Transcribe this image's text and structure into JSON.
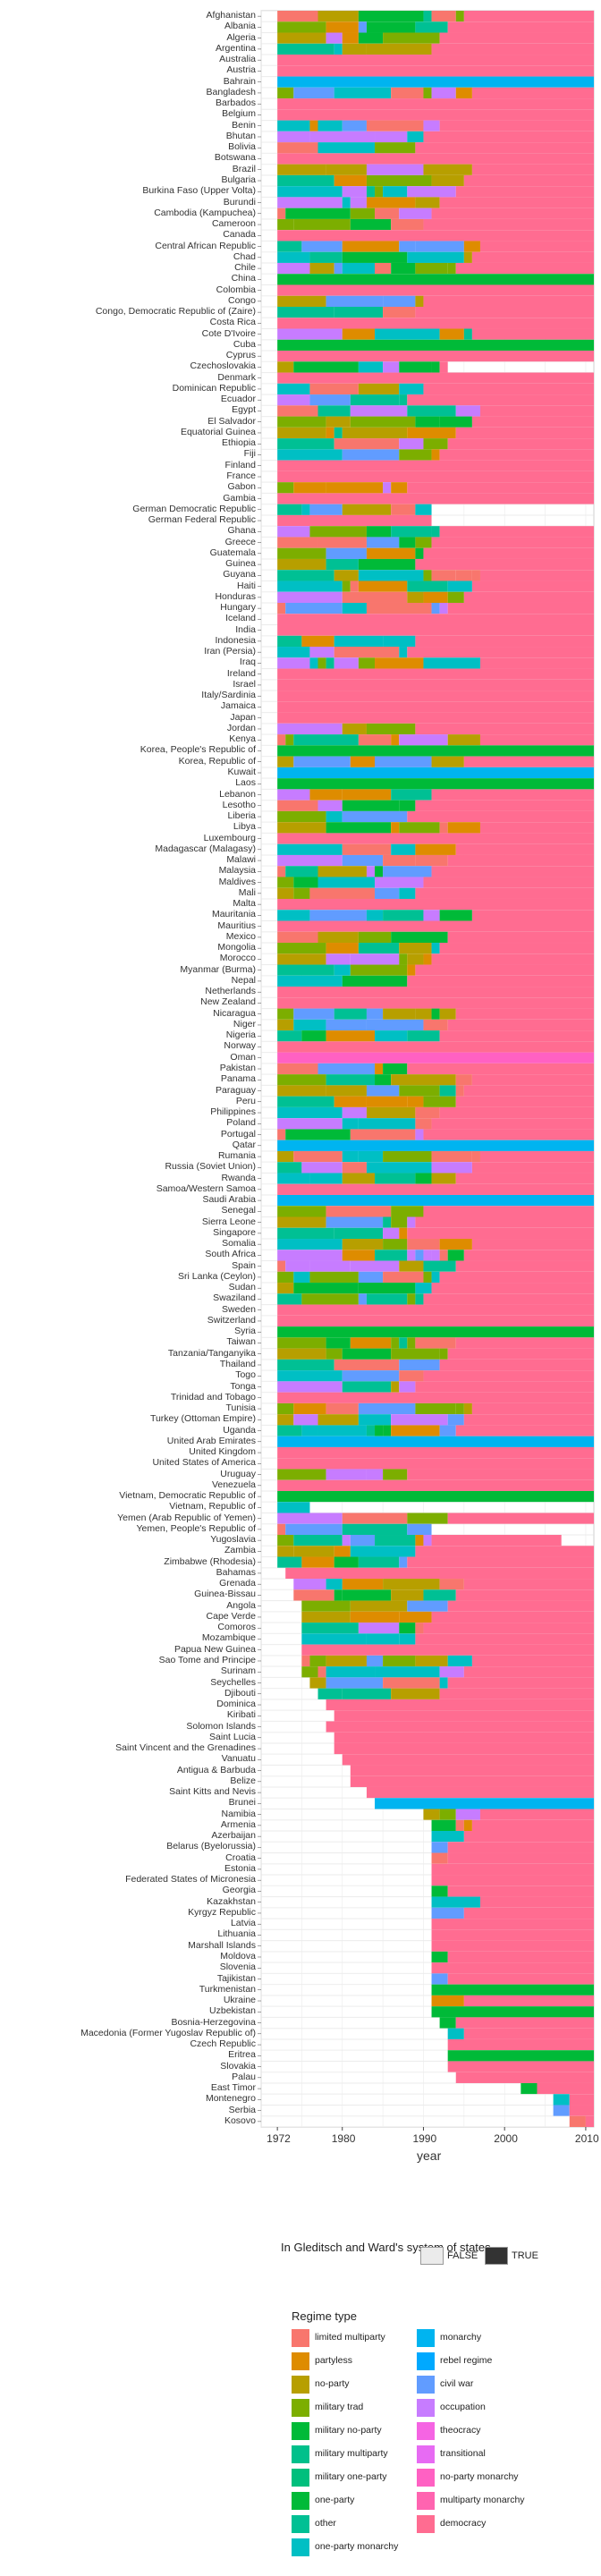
{
  "chart_data": {
    "type": "heatmap",
    "xlabel": "year",
    "x_ticks": [
      1972,
      1980,
      1990,
      2000,
      2010
    ],
    "xlim": [
      1970,
      2011
    ],
    "rows": [
      "Afghanistan",
      "Albania",
      "Algeria",
      "Argentina",
      "Australia",
      "Austria",
      "Bahrain",
      "Bangladesh",
      "Barbados",
      "Belgium",
      "Benin",
      "Bhutan",
      "Bolivia",
      "Botswana",
      "Brazil",
      "Bulgaria",
      "Burkina Faso (Upper Volta)",
      "Burundi",
      "Cambodia (Kampuchea)",
      "Cameroon",
      "Canada",
      "Central African Republic",
      "Chad",
      "Chile",
      "China",
      "Colombia",
      "Congo",
      "Congo, Democratic Republic of (Zaire)",
      "Costa Rica",
      "Cote D'Ivoire",
      "Cuba",
      "Cyprus",
      "Czechoslovakia",
      "Denmark",
      "Dominican Republic",
      "Ecuador",
      "Egypt",
      "El Salvador",
      "Equatorial Guinea",
      "Ethiopia",
      "Fiji",
      "Finland",
      "France",
      "Gabon",
      "Gambia",
      "German Democratic Republic",
      "German Federal Republic",
      "Ghana",
      "Greece",
      "Guatemala",
      "Guinea",
      "Guyana",
      "Haiti",
      "Honduras",
      "Hungary",
      "Iceland",
      "India",
      "Indonesia",
      "Iran (Persia)",
      "Iraq",
      "Ireland",
      "Israel",
      "Italy/Sardinia",
      "Jamaica",
      "Japan",
      "Jordan",
      "Kenya",
      "Korea, People's Republic of",
      "Korea, Republic of",
      "Kuwait",
      "Laos",
      "Lebanon",
      "Lesotho",
      "Liberia",
      "Libya",
      "Luxembourg",
      "Madagascar (Malagasy)",
      "Malawi",
      "Malaysia",
      "Maldives",
      "Mali",
      "Malta",
      "Mauritania",
      "Mauritius",
      "Mexico",
      "Mongolia",
      "Morocco",
      "Myanmar (Burma)",
      "Nepal",
      "Netherlands",
      "New Zealand",
      "Nicaragua",
      "Niger",
      "Nigeria",
      "Norway",
      "Oman",
      "Pakistan",
      "Panama",
      "Paraguay",
      "Peru",
      "Philippines",
      "Poland",
      "Portugal",
      "Qatar",
      "Rumania",
      "Russia (Soviet Union)",
      "Rwanda",
      "Samoa/Western Samoa",
      "Saudi Arabia",
      "Senegal",
      "Sierra Leone",
      "Singapore",
      "Somalia",
      "South Africa",
      "Spain",
      "Sri Lanka (Ceylon)",
      "Sudan",
      "Swaziland",
      "Sweden",
      "Switzerland",
      "Syria",
      "Taiwan",
      "Tanzania/Tanganyika",
      "Thailand",
      "Togo",
      "Tonga",
      "Trinidad and Tobago",
      "Tunisia",
      "Turkey (Ottoman Empire)",
      "Uganda",
      "United Arab Emirates",
      "United Kingdom",
      "United States of America",
      "Uruguay",
      "Venezuela",
      "Vietnam, Democratic Republic of",
      "Vietnam, Republic of",
      "Yemen (Arab Republic of Yemen)",
      "Yemen, People's Republic of",
      "Yugoslavia",
      "Zambia",
      "Zimbabwe (Rhodesia)",
      "Bahamas",
      "Grenada",
      "Guinea-Bissau",
      "Angola",
      "Cape Verde",
      "Comoros",
      "Mozambique",
      "Papua New Guinea",
      "Sao Tome and Principe",
      "Surinam",
      "Seychelles",
      "Djibouti",
      "Dominica",
      "Kiribati",
      "Solomon Islands",
      "Saint Lucia",
      "Saint Vincent and the Grenadines",
      "Vanuatu",
      "Antigua & Barbuda",
      "Belize",
      "Saint Kitts and Nevis",
      "Brunei",
      "Namibia",
      "Armenia",
      "Azerbaijan",
      "Belarus (Byelorussia)",
      "Croatia",
      "Estonia",
      "Federated States of Micronesia",
      "Georgia",
      "Kazakhstan",
      "Kyrgyz Republic",
      "Latvia",
      "Lithuania",
      "Marshall Islands",
      "Moldova",
      "Slovenia",
      "Tajikistan",
      "Turkmenistan",
      "Ukraine",
      "Uzbekistan",
      "Bosnia-Herzegovina",
      "Macedonia (Former Yugoslav Republic of)",
      "Czech Republic",
      "Eritrea",
      "Slovakia",
      "Palau",
      "East Timor",
      "Montenegro",
      "Serbia",
      "Kosovo"
    ],
    "legend_fill": {
      "title": "In Gleditsch and Ward's system of states",
      "entries": [
        {
          "label": "FALSE",
          "color": "#ebebeb"
        },
        {
          "label": "TRUE",
          "color": "#333333"
        }
      ]
    },
    "legend_regime": {
      "title": "Regime type",
      "entries": [
        {
          "label": "limited multiparty",
          "color": "#F8766D"
        },
        {
          "label": "partyless",
          "color": "#DE8C00"
        },
        {
          "label": "no-party",
          "color": "#B79F00"
        },
        {
          "label": "military trad",
          "color": "#7CAE00"
        },
        {
          "label": "military no-party",
          "color": "#00BA38"
        },
        {
          "label": "military multiparty",
          "color": "#00C08B"
        },
        {
          "label": "military one-party",
          "color": "#00BF7D"
        },
        {
          "label": "one-party",
          "color": "#00BA38"
        },
        {
          "label": "other",
          "color": "#00C094"
        },
        {
          "label": "one-party monarchy",
          "color": "#00BFC4"
        },
        {
          "label": "monarchy",
          "color": "#00B4F0"
        },
        {
          "label": "rebel regime",
          "color": "#00A9FF"
        },
        {
          "label": "civil war",
          "color": "#619CFF"
        },
        {
          "label": "occupation",
          "color": "#C77CFF"
        },
        {
          "label": "theocracy",
          "color": "#F564E3"
        },
        {
          "label": "transitional",
          "color": "#E76BF3"
        },
        {
          "label": "no-party monarchy",
          "color": "#FF61C3"
        },
        {
          "label": "multiparty monarchy",
          "color": "#FF64B0"
        },
        {
          "label": "democracy",
          "color": "#FF6C91"
        }
      ]
    },
    "series": [
      {
        "name": "democracy",
        "values": "most country-years from the 1990s onward and stable democracies 1972-2010"
      }
    ]
  }
}
